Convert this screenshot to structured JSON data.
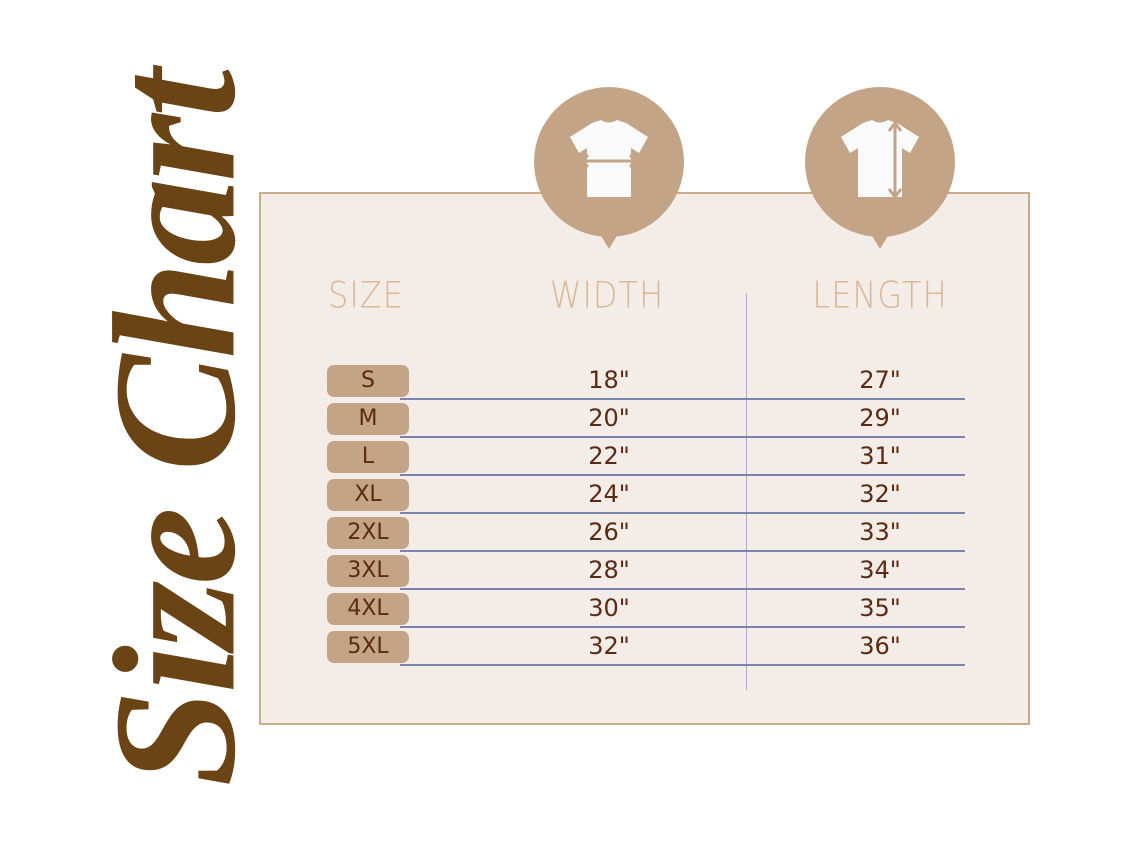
{
  "title": "Size Chart",
  "colors": {
    "title": "#6b4415",
    "panel": "#f4ece6",
    "accent": "#c4a487",
    "value_text": "#5a2a12",
    "header_text": "#d8b898",
    "row_line": "#7d83b0"
  },
  "icons": {
    "width": "tshirt-width-icon",
    "length": "tshirt-length-icon"
  },
  "headers": {
    "size": "SIZE",
    "width": "WIDTH",
    "length": "LENGTH"
  },
  "rows": [
    {
      "size": "S",
      "width": "18\"",
      "length": "27\""
    },
    {
      "size": "M",
      "width": "20\"",
      "length": "29\""
    },
    {
      "size": "L",
      "width": "22\"",
      "length": "31\""
    },
    {
      "size": "XL",
      "width": "24\"",
      "length": "32\""
    },
    {
      "size": "2XL",
      "width": "26\"",
      "length": "33\""
    },
    {
      "size": "3XL",
      "width": "28\"",
      "length": "34\""
    },
    {
      "size": "4XL",
      "width": "30\"",
      "length": "35\""
    },
    {
      "size": "5XL",
      "width": "32\"",
      "length": "36\""
    }
  ]
}
